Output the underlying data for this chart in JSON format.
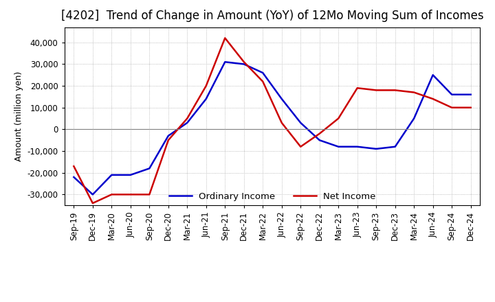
{
  "title": "[4202]  Trend of Change in Amount (YoY) of 12Mo Moving Sum of Incomes",
  "ylabel": "Amount (million yen)",
  "ylim": [
    -35000,
    47000
  ],
  "yticks": [
    -30000,
    -20000,
    -10000,
    0,
    10000,
    20000,
    30000,
    40000
  ],
  "x_labels": [
    "Sep-19",
    "Dec-19",
    "Mar-20",
    "Jun-20",
    "Sep-20",
    "Dec-20",
    "Mar-21",
    "Jun-21",
    "Sep-21",
    "Dec-21",
    "Mar-22",
    "Jun-22",
    "Sep-22",
    "Dec-22",
    "Mar-23",
    "Jun-23",
    "Sep-23",
    "Dec-23",
    "Mar-24",
    "Jun-24",
    "Sep-24",
    "Dec-24"
  ],
  "ordinary_income": [
    -22000,
    -30000,
    -21000,
    -21000,
    -18000,
    -3000,
    3000,
    14000,
    31000,
    30000,
    26000,
    14000,
    3000,
    -5000,
    -8000,
    -8000,
    -9000,
    -8000,
    5000,
    25000,
    16000,
    16000
  ],
  "net_income": [
    -17000,
    -34000,
    -30000,
    -30000,
    -30000,
    -5000,
    5000,
    20000,
    42000,
    31000,
    22000,
    3000,
    -8000,
    -2000,
    5000,
    19000,
    18000,
    18000,
    17000,
    14000,
    10000,
    10000
  ],
  "ordinary_color": "#0000cc",
  "net_color": "#cc0000",
  "grid_color": "#aaaaaa",
  "background_color": "#ffffff",
  "title_fontsize": 12,
  "label_fontsize": 9,
  "tick_fontsize": 8.5
}
